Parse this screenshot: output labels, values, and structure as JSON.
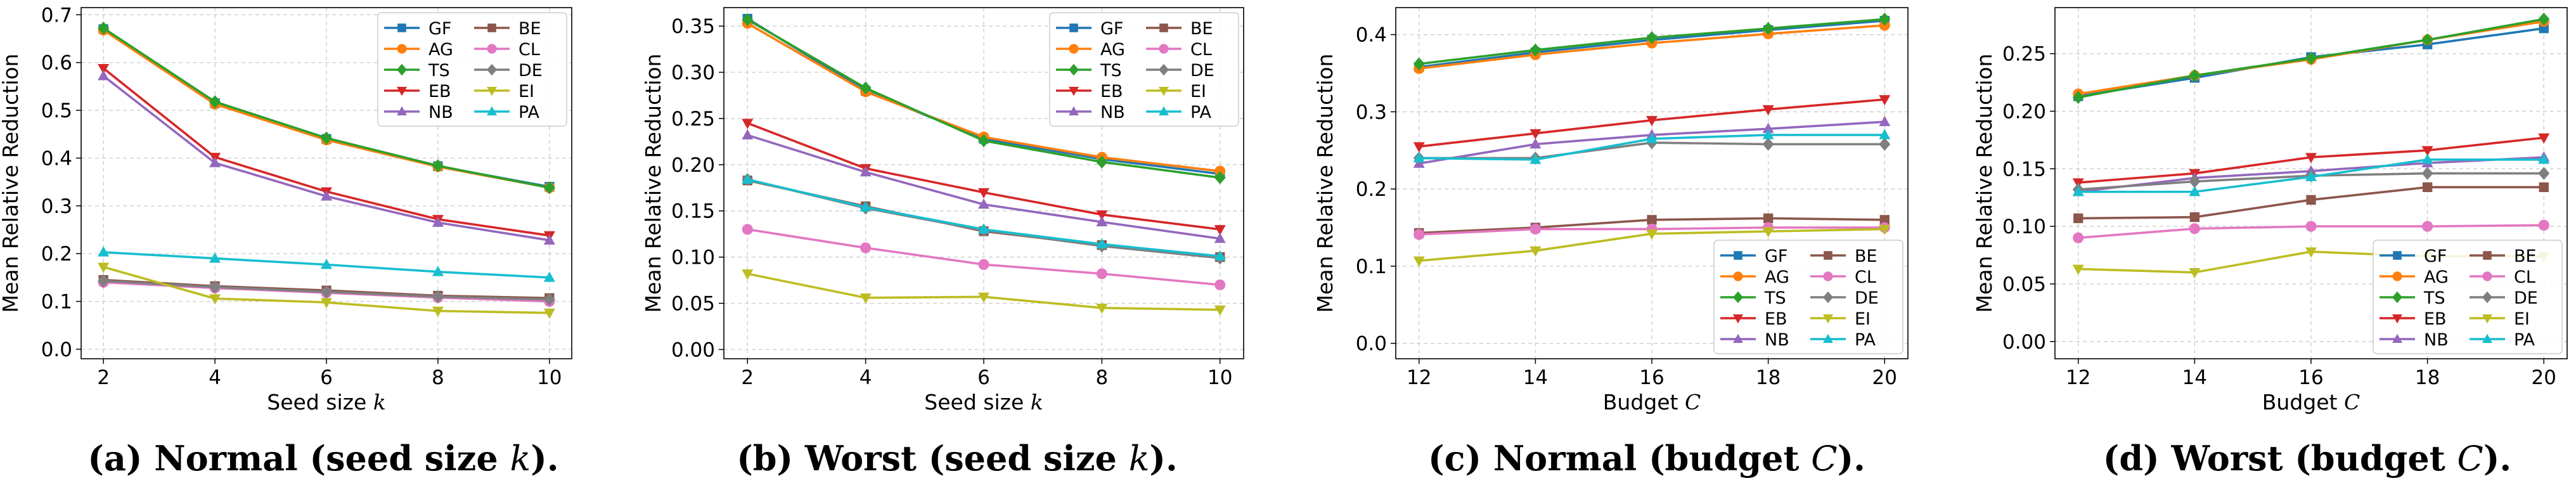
{
  "figure": {
    "legend_order": [
      "GF",
      "BE",
      "AG",
      "CL",
      "TS",
      "DE",
      "EB",
      "EI",
      "NB",
      "PA"
    ]
  },
  "series_styles": {
    "GF": {
      "color": "#1f77b4",
      "marker": "square"
    },
    "AG": {
      "color": "#ff7f0e",
      "marker": "circle"
    },
    "TS": {
      "color": "#2ca02c",
      "marker": "diamond"
    },
    "EB": {
      "color": "#d62728",
      "marker": "triangle-down"
    },
    "NB": {
      "color": "#9467bd",
      "marker": "triangle-up"
    },
    "BE": {
      "color": "#8c564b",
      "marker": "square"
    },
    "CL": {
      "color": "#e377c2",
      "marker": "circle"
    },
    "DE": {
      "color": "#7f7f7f",
      "marker": "diamond"
    },
    "EI": {
      "color": "#bcbd22",
      "marker": "triangle-down"
    },
    "PA": {
      "color": "#17becf",
      "marker": "triangle-up"
    }
  },
  "chart_data": [
    {
      "type": "line",
      "caption_label": "(a)",
      "caption_bold": "Normal (seed size ",
      "caption_var": "k",
      "caption_end": ").",
      "xlabel": "Seed size",
      "xlabel_var": "k",
      "ylabel": "Mean Relative Reduction",
      "x": [
        2,
        4,
        6,
        8,
        10
      ],
      "xlim": [
        1.6,
        10.4
      ],
      "ylim": [
        -0.02,
        0.715
      ],
      "yticks": [
        "0.0",
        "0.1",
        "0.2",
        "0.3",
        "0.4",
        "0.5",
        "0.6",
        "0.7"
      ],
      "legend_position": "top-right",
      "series": [
        {
          "name": "GF",
          "values": [
            0.67,
            0.515,
            0.44,
            0.383,
            0.34
          ]
        },
        {
          "name": "AG",
          "values": [
            0.668,
            0.513,
            0.438,
            0.382,
            0.338
          ]
        },
        {
          "name": "TS",
          "values": [
            0.672,
            0.518,
            0.442,
            0.384,
            0.338
          ]
        },
        {
          "name": "EB",
          "values": [
            0.588,
            0.402,
            0.33,
            0.272,
            0.238
          ]
        },
        {
          "name": "NB",
          "values": [
            0.572,
            0.39,
            0.32,
            0.265,
            0.228
          ]
        },
        {
          "name": "BE",
          "values": [
            0.145,
            0.132,
            0.123,
            0.112,
            0.107
          ]
        },
        {
          "name": "CL",
          "values": [
            0.14,
            0.128,
            0.118,
            0.108,
            0.1
          ]
        },
        {
          "name": "DE",
          "values": [
            0.143,
            0.13,
            0.12,
            0.11,
            0.104
          ]
        },
        {
          "name": "EI",
          "values": [
            0.172,
            0.106,
            0.098,
            0.08,
            0.076
          ]
        },
        {
          "name": "PA",
          "values": [
            0.203,
            0.19,
            0.177,
            0.162,
            0.15
          ]
        }
      ]
    },
    {
      "type": "line",
      "caption_label": "(b)",
      "caption_bold": "Worst (seed size ",
      "caption_var": "k",
      "caption_end": ").",
      "xlabel": "Seed size",
      "xlabel_var": "k",
      "ylabel": "Mean Relative Reduction",
      "x": [
        2,
        4,
        6,
        8,
        10
      ],
      "xlim": [
        1.6,
        10.4
      ],
      "ylim": [
        -0.01,
        0.37
      ],
      "yticks": [
        "0.00",
        "0.05",
        "0.10",
        "0.15",
        "0.20",
        "0.25",
        "0.30",
        "0.35"
      ],
      "legend_position": "top-right",
      "series": [
        {
          "name": "GF",
          "values": [
            0.358,
            0.28,
            0.228,
            0.206,
            0.19
          ]
        },
        {
          "name": "AG",
          "values": [
            0.353,
            0.279,
            0.23,
            0.208,
            0.193
          ]
        },
        {
          "name": "TS",
          "values": [
            0.357,
            0.283,
            0.226,
            0.203,
            0.186
          ]
        },
        {
          "name": "EB",
          "values": [
            0.245,
            0.196,
            0.17,
            0.146,
            0.13
          ]
        },
        {
          "name": "NB",
          "values": [
            0.232,
            0.192,
            0.157,
            0.138,
            0.12
          ]
        },
        {
          "name": "BE",
          "values": [
            0.183,
            0.155,
            0.128,
            0.113,
            0.1
          ]
        },
        {
          "name": "CL",
          "values": [
            0.13,
            0.11,
            0.092,
            0.082,
            0.07
          ]
        },
        {
          "name": "DE",
          "values": [
            0.184,
            0.153,
            0.129,
            0.112,
            0.099
          ]
        },
        {
          "name": "EI",
          "values": [
            0.082,
            0.056,
            0.057,
            0.045,
            0.043
          ]
        },
        {
          "name": "PA",
          "values": [
            0.184,
            0.154,
            0.13,
            0.114,
            0.101
          ]
        }
      ]
    },
    {
      "type": "line",
      "caption_label": "(c)",
      "caption_bold": "Normal (budget ",
      "caption_var": "C",
      "caption_end": ").",
      "xlabel": "Budget",
      "xlabel_var": "C",
      "ylabel": "Mean Relative Reduction",
      "x": [
        12,
        14,
        16,
        18,
        20
      ],
      "xlim": [
        11.6,
        20.4
      ],
      "ylim": [
        -0.02,
        0.435
      ],
      "yticks": [
        "0.0",
        "0.1",
        "0.2",
        "0.3",
        "0.4"
      ],
      "legend_position": "bottom-right",
      "series": [
        {
          "name": "GF",
          "values": [
            0.358,
            0.377,
            0.393,
            0.406,
            0.418
          ]
        },
        {
          "name": "AG",
          "values": [
            0.356,
            0.374,
            0.389,
            0.401,
            0.412
          ]
        },
        {
          "name": "TS",
          "values": [
            0.362,
            0.38,
            0.396,
            0.408,
            0.42
          ]
        },
        {
          "name": "EB",
          "values": [
            0.255,
            0.272,
            0.289,
            0.303,
            0.316
          ]
        },
        {
          "name": "NB",
          "values": [
            0.233,
            0.258,
            0.27,
            0.278,
            0.287
          ]
        },
        {
          "name": "BE",
          "values": [
            0.143,
            0.15,
            0.16,
            0.162,
            0.16
          ]
        },
        {
          "name": "CL",
          "values": [
            0.141,
            0.148,
            0.148,
            0.15,
            0.15
          ]
        },
        {
          "name": "DE",
          "values": [
            0.24,
            0.24,
            0.26,
            0.258,
            0.258
          ]
        },
        {
          "name": "EI",
          "values": [
            0.107,
            0.12,
            0.142,
            0.145,
            0.148
          ]
        },
        {
          "name": "PA",
          "values": [
            0.24,
            0.238,
            0.265,
            0.27,
            0.27
          ]
        }
      ]
    },
    {
      "type": "line",
      "caption_label": "(d)",
      "caption_bold": "Worst (budget ",
      "caption_var": "C",
      "caption_end": ").",
      "xlabel": "Budget",
      "xlabel_var": "C",
      "ylabel": "Mean Relative Reduction",
      "x": [
        12,
        14,
        16,
        18,
        20
      ],
      "xlim": [
        11.6,
        20.4
      ],
      "ylim": [
        -0.015,
        0.29
      ],
      "yticks": [
        "0.00",
        "0.05",
        "0.10",
        "0.15",
        "0.20",
        "0.25"
      ],
      "legend_position": "bottom-right",
      "series": [
        {
          "name": "GF",
          "values": [
            0.213,
            0.229,
            0.247,
            0.258,
            0.272
          ]
        },
        {
          "name": "AG",
          "values": [
            0.215,
            0.231,
            0.245,
            0.262,
            0.278
          ]
        },
        {
          "name": "TS",
          "values": [
            0.212,
            0.231,
            0.246,
            0.262,
            0.28
          ]
        },
        {
          "name": "EB",
          "values": [
            0.138,
            0.146,
            0.16,
            0.166,
            0.177
          ]
        },
        {
          "name": "NB",
          "values": [
            0.13,
            0.142,
            0.148,
            0.155,
            0.16
          ]
        },
        {
          "name": "BE",
          "values": [
            0.107,
            0.108,
            0.123,
            0.134,
            0.134
          ]
        },
        {
          "name": "CL",
          "values": [
            0.09,
            0.098,
            0.1,
            0.1,
            0.101
          ]
        },
        {
          "name": "DE",
          "values": [
            0.132,
            0.139,
            0.144,
            0.146,
            0.146
          ]
        },
        {
          "name": "EI",
          "values": [
            0.063,
            0.06,
            0.078,
            0.074,
            0.074
          ]
        },
        {
          "name": "PA",
          "values": [
            0.13,
            0.13,
            0.143,
            0.158,
            0.158
          ]
        }
      ]
    }
  ]
}
